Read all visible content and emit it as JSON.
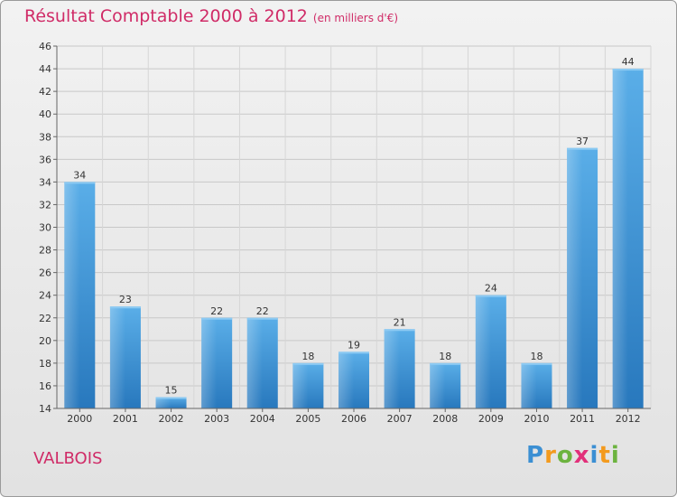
{
  "title": "Résultat Comptable 2000 à 2012",
  "unit": "(en milliers d'€)",
  "commune": "VALBOIS",
  "logo": {
    "letters": [
      "P",
      "r",
      "o",
      "x",
      "i",
      "t",
      "i"
    ],
    "colors": [
      "#3b8fd3",
      "#f39a1d",
      "#6cb33f",
      "#e2307a",
      "#3b8fd3",
      "#f39a1d",
      "#6cb33f"
    ]
  },
  "colors": {
    "bar": "#3d96d8",
    "title": "#d02b67"
  },
  "chart_data": {
    "type": "bar",
    "title": "Résultat Comptable 2000 à 2012",
    "ylabel": "en milliers d'€",
    "xlabel": "",
    "categories": [
      "2000",
      "2001",
      "2002",
      "2003",
      "2004",
      "2005",
      "2006",
      "2007",
      "2008",
      "2009",
      "2010",
      "2011",
      "2012"
    ],
    "values": [
      34,
      23,
      15,
      22,
      22,
      18,
      19,
      21,
      18,
      24,
      18,
      37,
      44
    ],
    "ylim": [
      14,
      46
    ],
    "yticks": [
      14,
      16,
      18,
      20,
      22,
      24,
      26,
      28,
      30,
      32,
      34,
      36,
      38,
      40,
      42,
      44,
      46
    ],
    "grid": true
  }
}
